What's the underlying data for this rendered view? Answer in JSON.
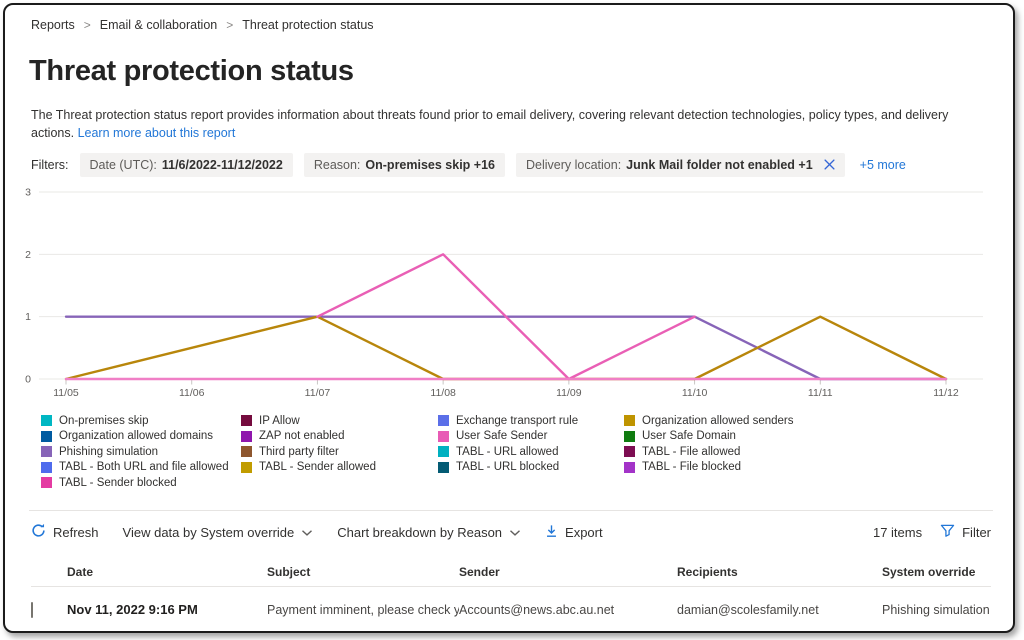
{
  "colors": {
    "accent": "#2277d7"
  },
  "breadcrumb": {
    "separator": ">",
    "items": [
      {
        "label": "Reports"
      },
      {
        "label": "Email & collaboration"
      },
      {
        "label": "Threat protection status"
      }
    ]
  },
  "page": {
    "title": "Threat protection status",
    "description": "The Threat protection status report provides information about threats found prior to email delivery, covering relevant detection technologies, policy types, and delivery actions.",
    "learn_more_label": "Learn more about this report"
  },
  "filters": {
    "label": "Filters:",
    "chips": [
      {
        "label": "Date (UTC):",
        "value": "11/6/2022-11/12/2022",
        "closable": false
      },
      {
        "label": "Reason:",
        "value": "On-premises skip +16",
        "closable": false
      },
      {
        "label": "Delivery location:",
        "value": "Junk Mail folder not enabled +1",
        "closable": true
      }
    ],
    "more_label": "+5 more"
  },
  "chart_data": {
    "type": "line",
    "x_labels": [
      "11/05",
      "11/06",
      "11/07",
      "11/08",
      "11/09",
      "11/10",
      "11/11",
      "11/12"
    ],
    "y_ticks": [
      0,
      1,
      2,
      3
    ],
    "ylim": [
      0,
      3
    ],
    "grid": true,
    "legend_position": "bottom",
    "series": [
      {
        "name": "Phishing simulation",
        "color": "#8764b8",
        "values": [
          1,
          1,
          1,
          1,
          1,
          1,
          0,
          0
        ]
      },
      {
        "name": "Organization allowed senders",
        "color": "#b8860b",
        "values": [
          0,
          null,
          1,
          0,
          0,
          0,
          1,
          0
        ]
      },
      {
        "name": "User Safe Sender",
        "color": "#e95fb5",
        "values": [
          null,
          null,
          1,
          2,
          0,
          1,
          null,
          null
        ]
      },
      {
        "name": "TABL - Sender blocked",
        "color": "#f07fc6",
        "values": [
          0,
          0,
          0,
          0,
          0,
          0,
          0,
          0
        ]
      }
    ],
    "legend_columns": [
      [
        {
          "label": "On-premises skip",
          "color": "#00b7c3"
        },
        {
          "label": "Organization allowed domains",
          "color": "#005ba1"
        },
        {
          "label": "Phishing simulation",
          "color": "#8764b8"
        },
        {
          "label": "TABL - Both URL and file allowed",
          "color": "#4f6bed"
        },
        {
          "label": "TABL - Sender blocked",
          "color": "#e43ba2"
        }
      ],
      [
        {
          "label": "IP Allow",
          "color": "#750b3e"
        },
        {
          "label": "ZAP not enabled",
          "color": "#8f16ad"
        },
        {
          "label": "Third party filter",
          "color": "#8e562e"
        },
        {
          "label": "TABL - Sender allowed",
          "color": "#c19c00"
        }
      ],
      [
        {
          "label": "Exchange transport rule",
          "color": "#5b6fe8"
        },
        {
          "label": "User Safe Sender",
          "color": "#e85bb5"
        },
        {
          "label": "TABL - URL allowed",
          "color": "#00b0c0"
        },
        {
          "label": "TABL - URL blocked",
          "color": "#045b74"
        }
      ],
      [
        {
          "label": "Organization allowed senders",
          "color": "#bf9400"
        },
        {
          "label": "User Safe Domain",
          "color": "#107c10"
        },
        {
          "label": "TABL - File allowed",
          "color": "#7d0d52"
        },
        {
          "label": "TABL - File blocked",
          "color": "#a333c8"
        }
      ]
    ]
  },
  "toolbar": {
    "refresh_label": "Refresh",
    "view_data_label": "View data by System override",
    "breakdown_label": "Chart breakdown by Reason",
    "export_label": "Export",
    "items_count": "17 items",
    "filter_label": "Filter"
  },
  "table": {
    "columns": [
      "Date",
      "Subject",
      "Sender",
      "Recipients",
      "System override"
    ],
    "rows": [
      {
        "date": "Nov 11, 2022 9:16 PM",
        "subject": "Payment imminent, please check your ...",
        "sender": "Accounts@news.abc.au.net",
        "recipients": "damian@scolesfamily.net",
        "system_override": "Phishing simulation"
      }
    ]
  }
}
